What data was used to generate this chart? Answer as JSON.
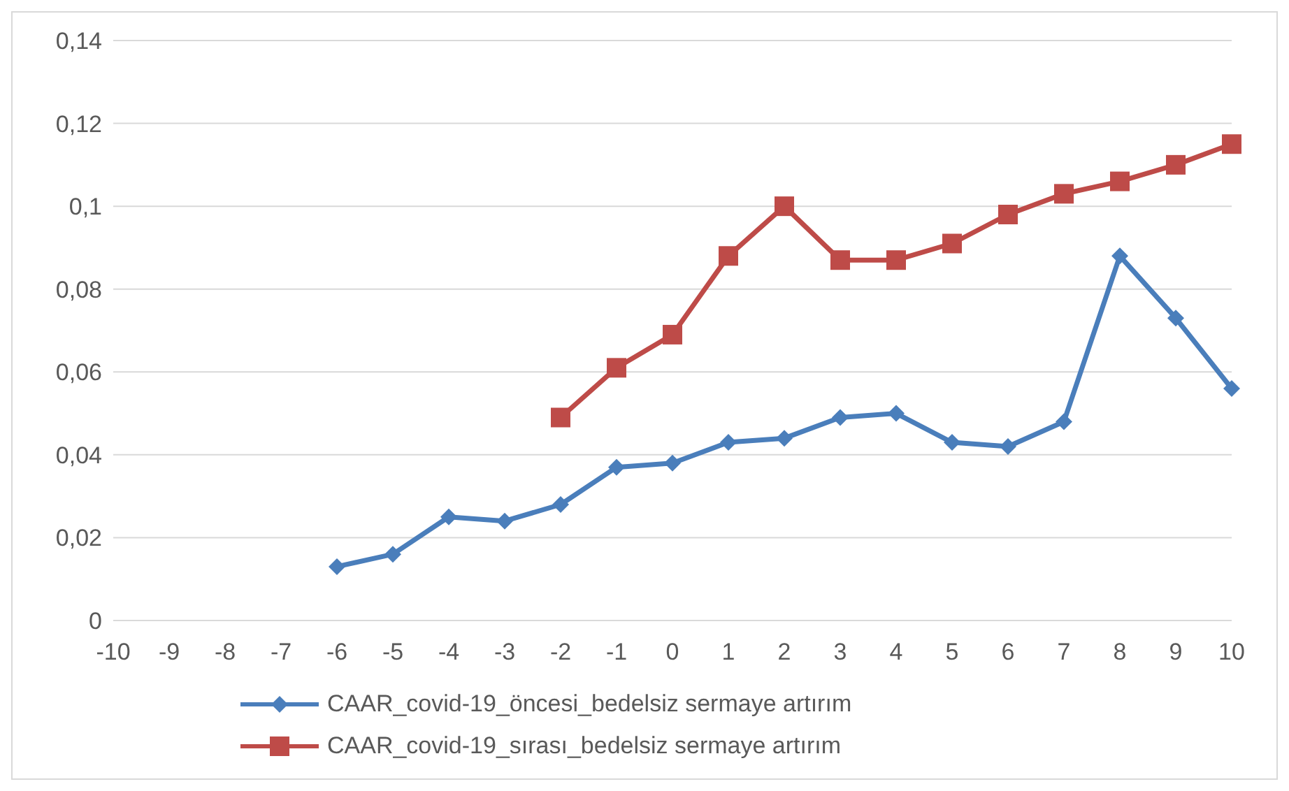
{
  "chart_data": {
    "type": "line",
    "categories": [
      "-10",
      "-9",
      "-8",
      "-7",
      "-6",
      "-5",
      "-4",
      "-3",
      "-2",
      "-1",
      "0",
      "1",
      "2",
      "3",
      "4",
      "5",
      "6",
      "7",
      "8",
      "9",
      "10"
    ],
    "series": [
      {
        "name": "CAAR_covid-19_öncesi_bedelsiz sermaye artırım",
        "color": "#4a7ebb",
        "marker": "diamond",
        "values": [
          null,
          null,
          null,
          null,
          0.013,
          0.016,
          0.025,
          0.024,
          0.028,
          0.037,
          0.038,
          0.043,
          0.044,
          0.049,
          0.05,
          0.043,
          0.042,
          0.048,
          0.088,
          0.073,
          0.056
        ]
      },
      {
        "name": "CAAR_covid-19_sırası_bedelsiz sermaye artırım",
        "color": "#be4b48",
        "marker": "square",
        "values": [
          null,
          null,
          null,
          null,
          null,
          null,
          null,
          null,
          0.049,
          0.061,
          0.069,
          0.088,
          0.1,
          0.087,
          0.087,
          0.091,
          0.098,
          0.103,
          0.106,
          0.11,
          0.115
        ]
      }
    ],
    "ylim": [
      0,
      0.14
    ],
    "yticks": [
      {
        "value": 0,
        "label": "0"
      },
      {
        "value": 0.02,
        "label": "0,02"
      },
      {
        "value": 0.04,
        "label": "0,04"
      },
      {
        "value": 0.06,
        "label": "0,06"
      },
      {
        "value": 0.08,
        "label": "0,08"
      },
      {
        "value": 0.1,
        "label": "0,1"
      },
      {
        "value": 0.12,
        "label": "0,12"
      },
      {
        "value": 0.14,
        "label": "0,14"
      }
    ],
    "grid": "y",
    "legend": "bottom",
    "line_style": "solid"
  }
}
